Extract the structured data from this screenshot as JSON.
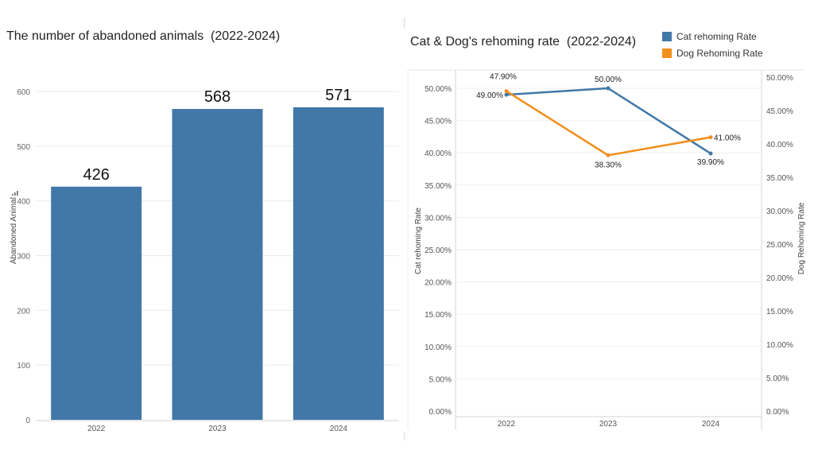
{
  "left_chart": {
    "title": "The number of abandoned animals  (2022-2024)",
    "chart_data": {
      "type": "bar",
      "categories": [
        "2022",
        "2023",
        "2024"
      ],
      "values": [
        426,
        568,
        571
      ],
      "ylabel": "Abandoned Animal",
      "ylim": [
        0,
        640
      ],
      "yticks": [
        0,
        100,
        200,
        300,
        400,
        500,
        600
      ],
      "ytick_labels": [
        "0",
        "100",
        "200",
        "300",
        "400",
        "500",
        "600"
      ],
      "data_labels": [
        "426",
        "568",
        "571"
      ],
      "color": "#4178a8",
      "grid": true
    }
  },
  "right_chart": {
    "title": "Cat & Dog's rehoming rate  (2022-2024)",
    "chart_data": {
      "type": "line",
      "categories": [
        "2022",
        "2023",
        "2024"
      ],
      "series": [
        {
          "name": "Cat rehoming Rate",
          "axis": "left",
          "color": "#4178a8",
          "values": [
            49.0,
            50.0,
            39.9
          ],
          "labels": [
            "49.00%",
            "50.00%",
            "39.90%"
          ]
        },
        {
          "name": "Dog Rehoming Rate",
          "axis": "right",
          "color": "#f28e1c",
          "values": [
            47.9,
            38.3,
            41.0
          ],
          "labels": [
            "47.90%",
            "38.30%",
            "41.00%"
          ]
        }
      ],
      "ylabel_left": "Cat rehoming Rate",
      "ylabel_right": "Dog Rehoming Rate",
      "ylim_left": [
        0,
        52
      ],
      "ylim_right": [
        0,
        52
      ],
      "left_ticks": [
        0,
        5,
        10,
        15,
        20,
        25,
        30,
        35,
        40,
        45,
        50
      ],
      "left_tick_labels": [
        "0.00%",
        "5.00%",
        "10.00%",
        "15.00%",
        "20.00%",
        "25.00%",
        "30.00%",
        "35.00%",
        "40.00%",
        "45.00%",
        "50.00%"
      ],
      "right_ticks": [
        0,
        5,
        10,
        15,
        20,
        25,
        30,
        35,
        40,
        45,
        50
      ],
      "right_tick_labels": [
        "0.00%",
        "5.00%",
        "10.00%",
        "15.00%",
        "20.00%",
        "25.00%",
        "30.00%",
        "35.00%",
        "40.00%",
        "45.00%",
        "50.00%"
      ],
      "legend_position": "top-right",
      "grid": true
    }
  }
}
